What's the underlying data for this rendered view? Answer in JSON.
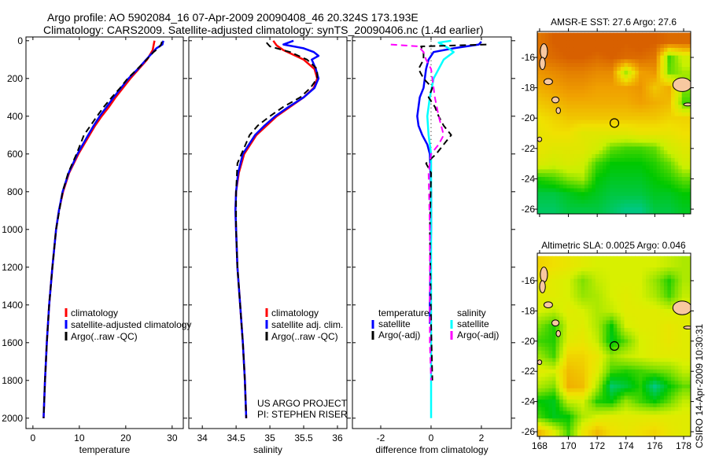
{
  "title": {
    "line1": "Argo profile: AO 5902084_16 07-Apr-2009 20090408_46 20.324S 173.193E",
    "line2": "Climatology: CARS2009. Satellite-adjusted climatology: synTS_20090406.nc (1.4d earlier)"
  },
  "credit": "CSIRO 14-Apr-2009 10:30:31",
  "project": {
    "line1": "US ARGO PROJECT",
    "line2": "PI: STEPHEN RISER"
  },
  "chart_data": [
    {
      "type": "line",
      "id": "temperature",
      "xlabel": "temperature",
      "ylabel": "",
      "xlim": [
        -1.5,
        32.4
      ],
      "ylim": [
        -20,
        2055
      ],
      "y_reversed": true,
      "xticks": [
        0,
        10,
        20,
        30
      ],
      "yticks": [
        0,
        200,
        400,
        600,
        800,
        1000,
        1200,
        1400,
        1600,
        1800,
        2000
      ],
      "legend": [
        "climatology",
        "satellite-adjusted climatology",
        "Argo(..raw -QC)"
      ],
      "series": [
        {
          "name": "climatology",
          "color": "#ff0000",
          "dash": false,
          "depth": [
            0,
            25,
            50,
            100,
            150,
            200,
            250,
            300,
            350,
            400,
            450,
            500,
            600,
            700,
            800,
            900,
            1000,
            1200,
            1400,
            1600,
            1700,
            1800,
            2000
          ],
          "values": [
            26.2,
            26.0,
            25.8,
            24.6,
            22.8,
            21.0,
            19.4,
            17.8,
            16.4,
            14.8,
            13.4,
            12.2,
            9.8,
            7.8,
            6.5,
            5.6,
            5.0,
            4.2,
            3.5,
            3.0,
            2.8,
            2.6,
            2.3
          ]
        },
        {
          "name": "satellite-adjusted climatology",
          "color": "#0000ff",
          "dash": false,
          "depth": [
            0,
            20,
            40,
            60,
            100,
            150,
            200,
            250,
            300,
            350,
            400,
            450,
            500,
            600,
            700,
            800,
            900,
            1000,
            1200,
            1400,
            1600,
            1800,
            2000
          ],
          "values": [
            28.1,
            27.9,
            26.6,
            25.9,
            24.4,
            22.6,
            20.6,
            19.0,
            17.4,
            15.9,
            14.4,
            13.1,
            11.9,
            9.6,
            7.7,
            6.4,
            5.6,
            5.0,
            4.2,
            3.5,
            3.0,
            2.6,
            2.3
          ]
        },
        {
          "name": "Argo(..raw -QC)",
          "color": "#000000",
          "dash": true,
          "depth": [
            5,
            20,
            40,
            60,
            100,
            150,
            200,
            250,
            300,
            350,
            400,
            450,
            500,
            550,
            600,
            700,
            800,
            1000,
            1200,
            1400,
            1600,
            1800,
            2000
          ],
          "values": [
            27.8,
            27.6,
            27.0,
            26.0,
            24.5,
            22.5,
            20.4,
            18.8,
            17.0,
            15.3,
            13.8,
            12.4,
            11.0,
            10.2,
            9.4,
            7.6,
            6.4,
            5.0,
            4.2,
            3.5,
            3.0,
            2.6,
            2.3
          ]
        }
      ]
    },
    {
      "type": "line",
      "id": "salinity",
      "xlabel": "salinity",
      "xlim": [
        33.8,
        36.14
      ],
      "ylim": [
        -20,
        2055
      ],
      "y_reversed": true,
      "xticks": [
        34,
        34.5,
        35,
        35.5,
        36
      ],
      "legend": [
        "climatology",
        "satellite adj. clim.",
        "Argo(..raw -QC)"
      ],
      "series": [
        {
          "name": "climatology",
          "color": "#ff0000",
          "dash": false,
          "depth": [
            0,
            25,
            50,
            100,
            150,
            200,
            250,
            300,
            350,
            400,
            450,
            500,
            600,
            700,
            800,
            900,
            1000,
            1200,
            1400,
            1600,
            1800,
            2000
          ],
          "values": [
            35.05,
            35.1,
            35.2,
            35.5,
            35.66,
            35.7,
            35.65,
            35.5,
            35.3,
            35.1,
            34.95,
            34.8,
            34.62,
            34.54,
            34.5,
            34.49,
            34.5,
            34.52,
            34.56,
            34.6,
            34.63,
            34.65
          ]
        },
        {
          "name": "satellite adj. clim.",
          "color": "#0000ff",
          "dash": false,
          "depth": [
            0,
            20,
            40,
            60,
            80,
            100,
            150,
            200,
            250,
            300,
            350,
            400,
            450,
            500,
            600,
            700,
            800,
            900,
            1000,
            1200,
            1400,
            1600,
            1800,
            2000
          ],
          "values": [
            35.35,
            35.2,
            35.5,
            35.65,
            35.72,
            35.62,
            35.68,
            35.72,
            35.66,
            35.5,
            35.28,
            35.08,
            34.92,
            34.78,
            34.6,
            34.53,
            34.5,
            34.49,
            34.5,
            34.52,
            34.56,
            34.6,
            34.63,
            34.65
          ]
        },
        {
          "name": "Argo(..raw -QC)",
          "color": "#000000",
          "dash": true,
          "depth": [
            10,
            30,
            60,
            100,
            150,
            200,
            250,
            300,
            350,
            400,
            450,
            500,
            600,
            650,
            800,
            1000,
            1200,
            1400,
            1600,
            1800,
            2000
          ],
          "values": [
            34.95,
            35.0,
            35.3,
            35.55,
            35.7,
            35.7,
            35.6,
            35.45,
            35.2,
            35.0,
            34.82,
            34.7,
            34.58,
            34.52,
            34.5,
            34.5,
            34.52,
            34.56,
            34.6,
            34.63,
            34.65
          ]
        }
      ]
    },
    {
      "type": "line",
      "id": "difference",
      "xlabel": "difference from climatology",
      "xlim": [
        -3.125,
        3.19
      ],
      "ylim": [
        -20,
        2055
      ],
      "y_reversed": true,
      "xticks": [
        -2,
        0,
        2
      ],
      "legend": {
        "temperature_heading": "temperature",
        "salinity_heading": "salinity",
        "temperature": [
          "satellite",
          "Argo(-adj)"
        ],
        "salinity": [
          "satellite",
          "Argo(-adj)"
        ]
      },
      "series": [
        {
          "name": "temperature satellite",
          "color": "#0000ff",
          "dash": false,
          "depth": [
            5,
            20,
            40,
            60,
            100,
            150,
            200,
            250,
            300,
            350,
            400,
            450,
            500,
            550,
            600,
            700,
            800,
            1000,
            1400,
            1500
          ],
          "values": [
            2.0,
            1.9,
            0.9,
            0.1,
            -0.1,
            -0.2,
            -0.25,
            -0.3,
            -0.45,
            -0.5,
            -0.55,
            -0.5,
            -0.35,
            -0.15,
            -0.05,
            -0.02,
            0,
            0,
            -0.05,
            -0.05
          ]
        },
        {
          "name": "salinity satellite",
          "color": "#00ffff",
          "dash": false,
          "depth": [
            0,
            10,
            40,
            60,
            100,
            150,
            200,
            300,
            400,
            500,
            600,
            800,
            1200,
            1600,
            2000
          ],
          "values": [
            0.8,
            0.3,
            0.7,
            0.9,
            0.5,
            0.3,
            0.1,
            -0.05,
            -0.15,
            -0.1,
            0,
            0,
            0,
            0,
            0
          ]
        },
        {
          "name": "temperature Argo(-adj)",
          "color": "#000000",
          "dash": true,
          "depth": [
            20,
            30,
            60,
            100,
            150,
            200,
            250,
            300,
            350,
            400,
            450,
            500,
            550,
            600,
            650,
            700,
            1000,
            1500,
            1800
          ],
          "values": [
            2.2,
            -0.4,
            -0.3,
            -0.3,
            -0.5,
            -0.3,
            0.05,
            -0.1,
            0.15,
            0.3,
            0.5,
            0.8,
            0.5,
            0.2,
            -0.2,
            0,
            -0.05,
            0,
            0.05
          ]
        },
        {
          "name": "salinity Argo(-adj)",
          "color": "#ff00ff",
          "dash": true,
          "depth": [
            20,
            30,
            60,
            100,
            150,
            200,
            300,
            400,
            500,
            550,
            600,
            700,
            1000,
            1600,
            1800
          ],
          "values": [
            -1.6,
            -0.5,
            -0.3,
            -0.2,
            0.0,
            0.05,
            0.15,
            0.3,
            0.5,
            0.3,
            0.0,
            -0.1,
            -0.05,
            -0.05,
            0
          ]
        }
      ]
    },
    {
      "type": "heatmap",
      "id": "sst-map",
      "title": "AMSR-E SST: 27.6 Argo: 27.6",
      "lon": [
        168,
        169,
        170,
        171,
        172,
        173,
        174,
        175,
        176,
        177,
        178
      ],
      "lat": [
        -15,
        -16,
        -17,
        -18,
        -19,
        -20,
        -21,
        -22,
        -23,
        -24,
        -25,
        -26
      ],
      "xlim": [
        167.84,
        178.49
      ],
      "ylim": [
        -26.31,
        -14.29
      ],
      "xticks": [
        168,
        170,
        172,
        174,
        176,
        178
      ],
      "yticks": [
        -16,
        -18,
        -20,
        -22,
        -24,
        -26
      ],
      "marker": {
        "lon": 173.193,
        "lat": -20.324
      },
      "colormap": {
        "stops": [
          25.8,
          26.3,
          26.9,
          27.4,
          27.9,
          28.5
        ],
        "colors": [
          "#00c8a0",
          "#00c800",
          "#c8f000",
          "#f0e000",
          "#f0a000",
          "#d86000"
        ]
      },
      "values": [
        [
          28.3,
          28.5,
          28.6,
          28.7,
          28.6,
          28.6,
          28.5,
          28.6,
          28.5,
          28.4,
          28.4
        ],
        [
          28.3,
          28.4,
          28.5,
          28.5,
          28.4,
          28.5,
          28.4,
          28.4,
          28.3,
          26.5,
          27.0
        ],
        [
          28.0,
          28.1,
          28.2,
          28.2,
          28.1,
          28.1,
          26.8,
          27.9,
          28.0,
          26.6,
          26.8
        ],
        [
          27.8,
          27.9,
          28.0,
          28.0,
          27.9,
          27.9,
          27.9,
          28.0,
          27.6,
          27.8,
          26.7
        ],
        [
          27.6,
          27.7,
          27.8,
          27.8,
          27.8,
          27.8,
          27.8,
          27.9,
          27.8,
          27.7,
          26.5
        ],
        [
          27.4,
          27.5,
          27.6,
          27.6,
          27.6,
          27.6,
          27.6,
          27.6,
          27.6,
          27.5,
          27.5
        ],
        [
          27.3,
          27.4,
          27.4,
          27.2,
          27.2,
          27.2,
          27.2,
          27.3,
          27.3,
          27.3,
          27.4
        ],
        [
          27.3,
          27.2,
          27.2,
          27.2,
          27.0,
          26.6,
          26.5,
          26.5,
          26.6,
          27.0,
          27.2
        ],
        [
          27.1,
          27.0,
          27.1,
          27.0,
          26.5,
          26.3,
          26.3,
          26.3,
          26.4,
          26.6,
          27.0
        ],
        [
          26.4,
          26.5,
          26.7,
          26.8,
          26.3,
          26.2,
          26.2,
          26.2,
          26.3,
          26.4,
          26.6
        ],
        [
          26.1,
          26.1,
          26.2,
          26.3,
          26.2,
          26.1,
          26.1,
          26.1,
          26.2,
          26.2,
          26.3
        ],
        [
          26.0,
          26.0,
          26.1,
          26.1,
          26.1,
          26.0,
          25.9,
          25.9,
          26.1,
          26.1,
          26.2
        ]
      ]
    },
    {
      "type": "heatmap",
      "id": "sla-map",
      "title": "Altimetric SLA: 0.0025 Argo: 0.046",
      "lon": [
        168,
        169,
        170,
        171,
        172,
        173,
        174,
        175,
        176,
        177,
        178
      ],
      "lat": [
        -15,
        -16,
        -17,
        -18,
        -19,
        -20,
        -21,
        -22,
        -23,
        -24,
        -25,
        -26
      ],
      "xlim": [
        167.84,
        178.49
      ],
      "ylim": [
        -26.31,
        -14.18
      ],
      "xticks": [
        168,
        170,
        172,
        174,
        176,
        178
      ],
      "yticks": [
        -16,
        -18,
        -20,
        -22,
        -24,
        -26
      ],
      "marker": {
        "lon": 173.193,
        "lat": -20.324
      },
      "colormap": {
        "stops": [
          -0.1,
          -0.04,
          0,
          0.04,
          0.07,
          0.11
        ],
        "colors": [
          "#00c8a0",
          "#00c800",
          "#80e000",
          "#d8f000",
          "#f0e000",
          "#f0b000"
        ]
      },
      "values": [
        [
          0.08,
          0.07,
          0.06,
          0.05,
          0.04,
          0.04,
          0.04,
          0.04,
          0.04,
          0.03,
          0.02
        ],
        [
          0.06,
          0.05,
          0.04,
          0.0,
          0.03,
          0.04,
          0.04,
          0.04,
          0.01,
          -0.03,
          0.02
        ],
        [
          0.05,
          0.05,
          0.04,
          0.01,
          0.02,
          0.04,
          0.05,
          0.04,
          0.02,
          -0.02,
          0.03
        ],
        [
          0.04,
          0.03,
          0.05,
          0.04,
          0.02,
          0.03,
          0.05,
          0.05,
          0.05,
          0.04,
          0.05
        ],
        [
          0.0,
          -0.03,
          0.04,
          0.05,
          0.02,
          -0.04,
          0.04,
          0.05,
          0.05,
          0.06,
          0.05
        ],
        [
          -0.02,
          -0.03,
          0.05,
          0.06,
          0.03,
          -0.05,
          -0.01,
          0.04,
          0.05,
          0.06,
          0.05
        ],
        [
          0.01,
          -0.02,
          0.08,
          0.08,
          0.06,
          0.01,
          0.03,
          0.04,
          0.05,
          0.05,
          0.05
        ],
        [
          0.05,
          0.04,
          0.1,
          0.09,
          0.05,
          -0.02,
          -0.03,
          -0.02,
          -0.01,
          0.0,
          0.03
        ],
        [
          0.02,
          0.0,
          0.11,
          0.1,
          0.02,
          -0.08,
          -0.06,
          -0.03,
          -0.09,
          -0.04,
          -0.01
        ],
        [
          -0.04,
          -0.05,
          0.03,
          0.04,
          -0.03,
          -0.04,
          0.01,
          -0.02,
          -0.04,
          -0.01,
          0.03
        ],
        [
          -0.02,
          -0.05,
          -0.04,
          0.02,
          0.04,
          0.05,
          0.05,
          0.05,
          0.05,
          0.05,
          0.05
        ],
        [
          0.1,
          0.05,
          -0.02,
          0.06,
          0.1,
          0.07,
          0.06,
          0.07,
          0.08,
          0.06,
          0.05
        ]
      ]
    }
  ]
}
